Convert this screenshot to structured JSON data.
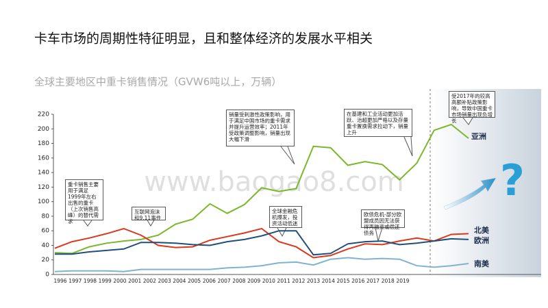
{
  "chart_data": {
    "type": "line",
    "title": "卡车市场的周期性特征明显，且和整体经济的发展水平相关",
    "subtitle": "全球主要地区中重卡销售情况（GVW6吨以上，万辆）",
    "categories": [
      "1996",
      "1997",
      "1998",
      "1999",
      "2000",
      "2001",
      "2002",
      "2003",
      "2004",
      "2005",
      "2006",
      "2007",
      "2008",
      "2009",
      "2010",
      "2011",
      "2012",
      "2013",
      "2014",
      "2015",
      "2016",
      "2017",
      "2018",
      "2019",
      null
    ],
    "series": [
      {
        "name": "亚洲",
        "color": "#7ab829",
        "values": [
          30,
          29,
          38,
          43,
          46,
          48,
          54,
          69,
          76,
          97,
          84,
          96,
          119,
          114,
          118,
          176,
          174,
          150,
          155,
          151,
          130,
          153,
          198,
          206,
          187
        ]
      },
      {
        "name": "北美",
        "color": "#d9381e",
        "values": [
          36,
          45,
          50,
          56,
          63,
          54,
          40,
          37,
          38,
          47,
          52,
          57,
          63,
          45,
          38,
          23,
          26,
          35,
          42,
          41,
          46,
          50,
          46,
          55,
          56
        ]
      },
      {
        "name": "欧洲",
        "color": "#1f4e79",
        "values": [
          28,
          28,
          31,
          33,
          35,
          44,
          44,
          43,
          41,
          40,
          45,
          48,
          53,
          60,
          60,
          27,
          29,
          42,
          45,
          46,
          41,
          43,
          46,
          49,
          48
        ]
      },
      {
        "name": "南美",
        "color": "#7fb2d0",
        "values": [
          4,
          5,
          5,
          5,
          4,
          7,
          7,
          7,
          7,
          7,
          9,
          10,
          12,
          16,
          17,
          13,
          21,
          23,
          21,
          22,
          21,
          12,
          10,
          12,
          15
        ]
      }
    ],
    "ylim": [
      0,
      220
    ],
    "yticks": [
      0,
      20,
      40,
      60,
      80,
      100,
      120,
      140,
      160,
      180,
      200,
      220
    ],
    "annotations": [
      "重卡销售主要用于满足1999年左右出售的重卡（上次销售高峰）的替代需求",
      "互联网泡沫和9.11事件",
      "全球金融危机爆发，投资活动低迷",
      "销量受刺激性政策影响，用于满足中国市场的重卡需求并提升运营效率；2011年受政策调整影响，销量出现大幅下滑",
      "在基建和工业活动更加活跃、治超更加严格以及存量重卡置换需求拉动下，销量上升",
      "欧债危机-部分欧盟成员因无法获得再融资或偿还债务",
      "受2017年的较高高额补贴政策影响，导致中国重卡市场销量出现负增长"
    ],
    "watermark": "www.baogao8.com",
    "question_mark": "?"
  }
}
